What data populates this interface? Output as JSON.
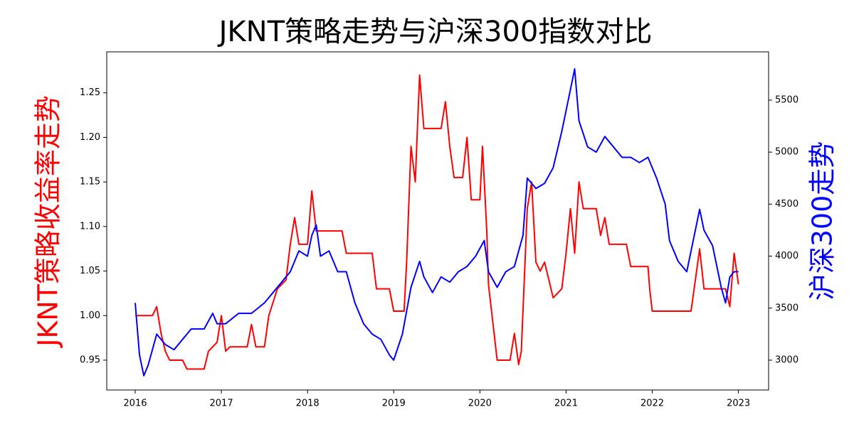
{
  "chart_data": {
    "type": "line",
    "title": "JKNT策略走势与沪深300指数对比",
    "ylabel": "JKNT策略收益率走势",
    "y2label": "沪深300走势",
    "xlim": [
      2015.67,
      2023.35
    ],
    "xticks": [
      2016,
      2017,
      2018,
      2019,
      2020,
      2021,
      2022,
      2023
    ],
    "ylim": [
      0.9165,
      1.296
    ],
    "yticks": [
      0.95,
      {
        "value": 1.0,
        "label": "1.00"
      },
      1.05,
      {
        "value": 1.1,
        "label": "1.10"
      },
      1.15,
      {
        "value": 1.2,
        "label": "1.20"
      },
      1.25
    ],
    "y2lim": [
      2713,
      5964
    ],
    "y2ticks": [
      3000,
      3500,
      4000,
      4500,
      5000,
      5500
    ],
    "series": [
      {
        "name": "JKNT策略",
        "color": "#ff0000",
        "axis": "y",
        "x": [
          2016.0,
          2016.2,
          2016.25,
          2016.3,
          2016.35,
          2016.4,
          2016.55,
          2016.6,
          2016.8,
          2016.85,
          2016.95,
          2017.0,
          2017.05,
          2017.1,
          2017.3,
          2017.35,
          2017.4,
          2017.5,
          2017.55,
          2017.65,
          2017.75,
          2017.8,
          2017.85,
          2017.9,
          2018.0,
          2018.05,
          2018.1,
          2018.4,
          2018.45,
          2018.75,
          2018.8,
          2018.95,
          2019.0,
          2019.12,
          2019.15,
          2019.2,
          2019.25,
          2019.3,
          2019.35,
          2019.55,
          2019.6,
          2019.65,
          2019.7,
          2019.8,
          2019.85,
          2019.9,
          2020.0,
          2020.03,
          2020.08,
          2020.1,
          2020.2,
          2020.35,
          2020.4,
          2020.45,
          2020.48,
          2020.55,
          2020.6,
          2020.65,
          2020.7,
          2020.75,
          2020.85,
          2020.95,
          2021.0,
          2021.05,
          2021.1,
          2021.15,
          2021.2,
          2021.35,
          2021.4,
          2021.45,
          2021.5,
          2021.7,
          2021.75,
          2021.95,
          2021.97,
          2022.0,
          2022.45,
          2022.5,
          2022.55,
          2022.6,
          2022.85,
          2022.9,
          2022.95,
          2023.0
        ],
        "values": [
          1.0,
          1.0,
          1.01,
          0.98,
          0.96,
          0.95,
          0.95,
          0.94,
          0.94,
          0.96,
          0.97,
          1.0,
          0.96,
          0.965,
          0.965,
          0.99,
          0.965,
          0.965,
          1.0,
          1.03,
          1.04,
          1.08,
          1.11,
          1.08,
          1.08,
          1.14,
          1.095,
          1.095,
          1.07,
          1.07,
          1.03,
          1.03,
          1.005,
          1.005,
          1.06,
          1.19,
          1.15,
          1.27,
          1.21,
          1.21,
          1.24,
          1.19,
          1.155,
          1.155,
          1.2,
          1.13,
          1.13,
          1.19,
          1.095,
          1.035,
          0.95,
          0.95,
          0.98,
          0.945,
          0.96,
          1.12,
          1.15,
          1.06,
          1.05,
          1.06,
          1.02,
          1.03,
          1.07,
          1.12,
          1.07,
          1.15,
          1.12,
          1.12,
          1.09,
          1.11,
          1.08,
          1.08,
          1.055,
          1.055,
          1.03,
          1.005,
          1.005,
          1.04,
          1.075,
          1.03,
          1.03,
          1.01,
          1.07,
          1.035
        ]
      },
      {
        "name": "沪深300",
        "color": "#0000ff",
        "axis": "y2",
        "x": [
          2016.0,
          2016.05,
          2016.1,
          2016.15,
          2016.25,
          2016.35,
          2016.45,
          2016.55,
          2016.65,
          2016.8,
          2016.9,
          2016.95,
          2017.05,
          2017.2,
          2017.35,
          2017.5,
          2017.6,
          2017.7,
          2017.8,
          2017.9,
          2018.0,
          2018.05,
          2018.1,
          2018.15,
          2018.25,
          2018.35,
          2018.45,
          2018.55,
          2018.65,
          2018.75,
          2018.85,
          2018.95,
          2019.0,
          2019.1,
          2019.2,
          2019.3,
          2019.35,
          2019.45,
          2019.55,
          2019.65,
          2019.75,
          2019.85,
          2019.95,
          2020.05,
          2020.1,
          2020.2,
          2020.3,
          2020.4,
          2020.5,
          2020.55,
          2020.65,
          2020.75,
          2020.85,
          2020.95,
          2021.05,
          2021.1,
          2021.15,
          2021.25,
          2021.35,
          2021.45,
          2021.55,
          2021.65,
          2021.75,
          2021.85,
          2021.95,
          2022.05,
          2022.15,
          2022.2,
          2022.3,
          2022.4,
          2022.5,
          2022.55,
          2022.6,
          2022.7,
          2022.8,
          2022.85,
          2022.9,
          2022.95,
          2023.0
        ],
        "values": [
          3550,
          3050,
          2850,
          2950,
          3250,
          3150,
          3100,
          3200,
          3300,
          3300,
          3450,
          3350,
          3350,
          3450,
          3450,
          3550,
          3650,
          3750,
          3850,
          4050,
          4000,
          4200,
          4300,
          4000,
          4050,
          3850,
          3850,
          3550,
          3350,
          3250,
          3200,
          3050,
          3000,
          3250,
          3700,
          3950,
          3800,
          3650,
          3800,
          3750,
          3850,
          3900,
          4000,
          4150,
          3850,
          3700,
          3850,
          3900,
          4200,
          4750,
          4650,
          4700,
          4850,
          5200,
          5600,
          5800,
          5300,
          5050,
          5000,
          5150,
          5050,
          4950,
          4950,
          4900,
          4950,
          4750,
          4500,
          4150,
          3950,
          3850,
          4250,
          4450,
          4250,
          4100,
          3700,
          3550,
          3800,
          3850,
          3850
        ]
      }
    ]
  }
}
